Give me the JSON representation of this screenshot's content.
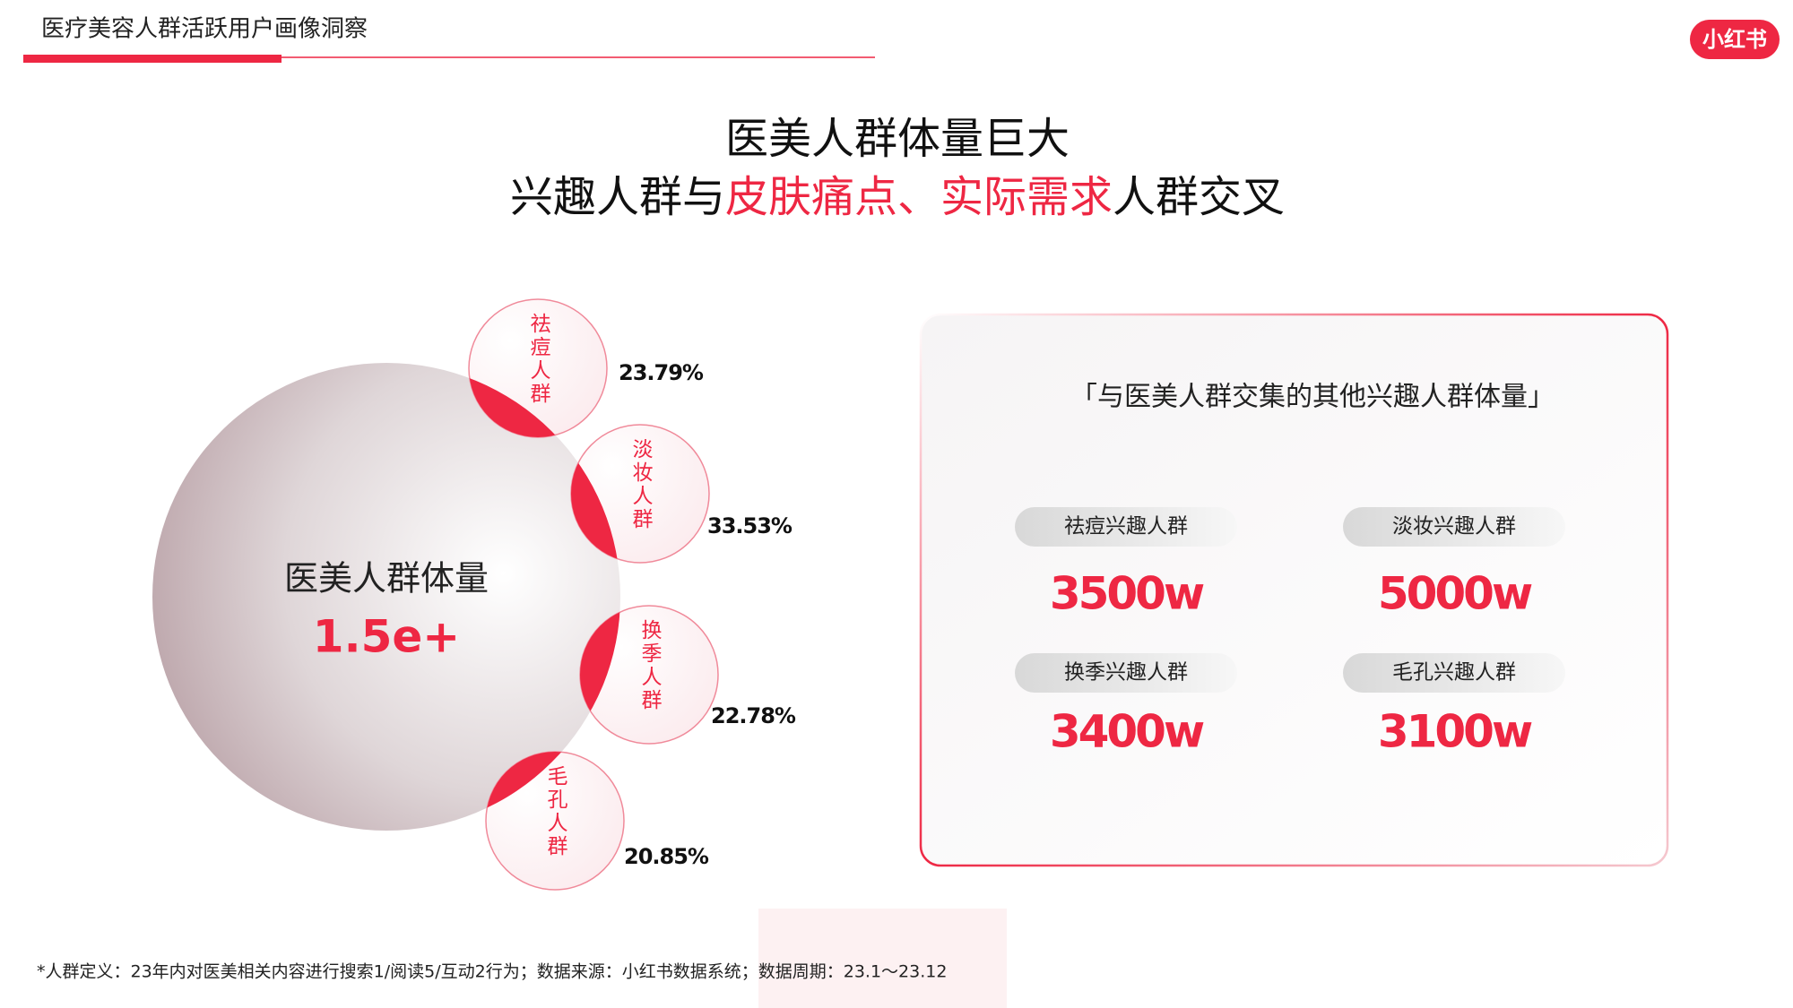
{
  "header": {
    "title": "医疗美容人群活跃用户画像洞察",
    "logo": "小红书"
  },
  "headline": {
    "line1": "医美人群体量巨大",
    "line2": [
      {
        "text": "兴趣人群与",
        "highlight": false
      },
      {
        "text": "皮肤痛点、实际需求",
        "highlight": true
      },
      {
        "text": "人群交叉",
        "highlight": false
      }
    ]
  },
  "main_circle": {
    "label": "医美人群体量",
    "value": "1.5e+"
  },
  "sub_circles": [
    {
      "label": "祛痘人群",
      "percent": "23.79%"
    },
    {
      "label": "淡妆人群",
      "percent": "33.53%"
    },
    {
      "label": "换季人群",
      "percent": "22.78%"
    },
    {
      "label": "毛孔人群",
      "percent": "20.85%"
    }
  ],
  "panel": {
    "title": "「与医美人群交集的其他兴趣人群体量」",
    "items": [
      {
        "label": "祛痘兴趣人群",
        "value": "3500w"
      },
      {
        "label": "淡妆兴趣人群",
        "value": "5000w"
      },
      {
        "label": "换季兴趣人群",
        "value": "3400w"
      },
      {
        "label": "毛孔兴趣人群",
        "value": "3100w"
      }
    ]
  },
  "footnote": "*人群定义：23年内对医美相关内容进行搜索1/阅读5/互动2行为；数据来源：小红书数据系统；数据周期：23.1～23.12"
}
